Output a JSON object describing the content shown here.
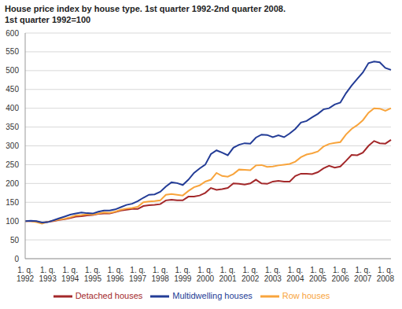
{
  "chart_data": {
    "type": "line",
    "title": "House price index by house type. 1st quarter 1992-2nd quarter 2008.",
    "subtitle": "1st quarter 1992=100",
    "categories": [
      "1. q. 1992",
      null,
      null,
      null,
      "1. q. 1993",
      null,
      null,
      null,
      "1. q. 1994",
      null,
      null,
      null,
      "1. q. 1995",
      null,
      null,
      null,
      "1. q. 1996",
      null,
      null,
      null,
      "1. q. 1997",
      null,
      null,
      null,
      "1. q. 1998",
      null,
      null,
      null,
      "1. q. 1999",
      null,
      null,
      null,
      "1. q. 2000",
      null,
      null,
      null,
      "1. q. 2001",
      null,
      null,
      null,
      "1. q. 2002",
      null,
      null,
      null,
      "1. q. 2003",
      null,
      null,
      null,
      "1. q. 2004",
      null,
      null,
      null,
      "1. q. 2005",
      null,
      null,
      null,
      "1. q. 2006",
      null,
      null,
      null,
      "1. q. 2007",
      null,
      null,
      null,
      "1. q. 2008",
      null
    ],
    "series": [
      {
        "name": "Detached houses",
        "color": "#a3282a",
        "values": [
          100,
          100,
          99,
          95,
          98,
          100,
          103,
          105,
          108,
          112,
          113,
          115,
          116,
          119,
          120,
          120,
          124,
          128,
          130,
          132,
          132,
          140,
          142,
          143,
          145,
          155,
          157,
          155,
          155,
          165,
          165,
          168,
          175,
          188,
          183,
          185,
          188,
          200,
          199,
          197,
          200,
          210,
          200,
          199,
          205,
          207,
          205,
          205,
          220,
          226,
          226,
          225,
          230,
          240,
          247,
          242,
          245,
          260,
          276,
          275,
          282,
          300,
          313,
          307,
          306,
          316
        ]
      },
      {
        "name": "Row houses",
        "color": "#f8a43c",
        "values": [
          100,
          100,
          97,
          93,
          98,
          101,
          104,
          106,
          110,
          115,
          116,
          118,
          117,
          120,
          123,
          122,
          125,
          130,
          133,
          135,
          138,
          150,
          152,
          153,
          155,
          170,
          172,
          170,
          168,
          180,
          190,
          195,
          205,
          210,
          228,
          220,
          218,
          225,
          237,
          236,
          235,
          248,
          249,
          244,
          245,
          248,
          250,
          252,
          258,
          270,
          277,
          280,
          285,
          298,
          305,
          308,
          310,
          330,
          345,
          355,
          368,
          388,
          400,
          399,
          393,
          400
        ]
      },
      {
        "name": "Multidwelling houses",
        "color": "#233c96",
        "values": [
          100,
          101,
          100,
          96,
          97,
          102,
          107,
          112,
          117,
          120,
          123,
          121,
          120,
          125,
          128,
          128,
          131,
          137,
          143,
          146,
          153,
          162,
          170,
          171,
          178,
          192,
          203,
          201,
          196,
          210,
          228,
          240,
          250,
          278,
          288,
          282,
          275,
          295,
          303,
          307,
          306,
          322,
          330,
          329,
          323,
          328,
          323,
          333,
          345,
          362,
          366,
          376,
          385,
          397,
          400,
          410,
          415,
          440,
          460,
          478,
          495,
          520,
          524,
          522,
          507,
          502
        ]
      }
    ],
    "ylim": [
      0,
      600
    ],
    "yticks": [
      0,
      50,
      100,
      150,
      200,
      250,
      300,
      350,
      400,
      450,
      500,
      550,
      600
    ],
    "grid": true,
    "legend": "bottom"
  }
}
